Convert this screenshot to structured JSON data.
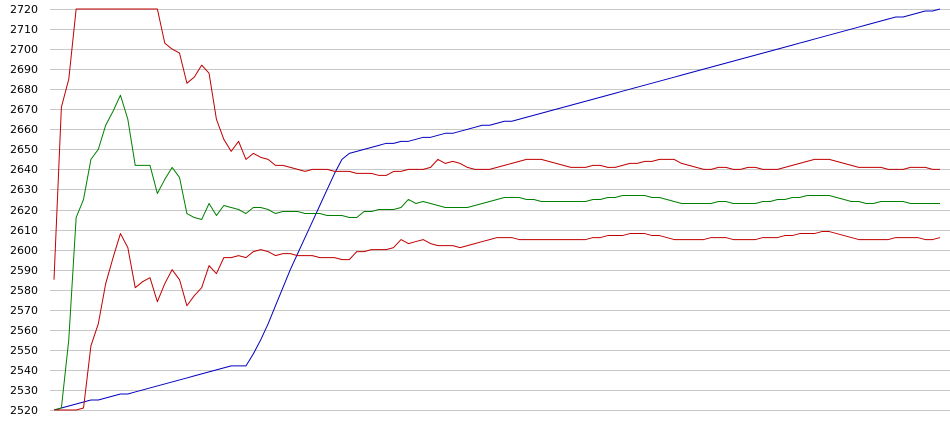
{
  "chart_data": {
    "type": "line",
    "title": "",
    "xlabel": "",
    "ylabel": "",
    "ylim": [
      2520,
      2720
    ],
    "yticks": [
      2520,
      2530,
      2540,
      2550,
      2560,
      2570,
      2580,
      2590,
      2600,
      2610,
      2620,
      2630,
      2640,
      2650,
      2660,
      2670,
      2680,
      2690,
      2700,
      2710,
      2720
    ],
    "grid": true,
    "legend": "none",
    "x": [
      0,
      1,
      2,
      3,
      4,
      5,
      6,
      7,
      8,
      9,
      10,
      11,
      12,
      13,
      14,
      15,
      16,
      17,
      18,
      19,
      20,
      21,
      22,
      23,
      24,
      25,
      26,
      27,
      28,
      29,
      30,
      31,
      32,
      33,
      34,
      35,
      36,
      37,
      38,
      39,
      40,
      41,
      42,
      43,
      44,
      45,
      46,
      47,
      48,
      49,
      50,
      51,
      52,
      53,
      54,
      55,
      56,
      57,
      58,
      59,
      60,
      61,
      62,
      63,
      64,
      65,
      66,
      67,
      68,
      69,
      70,
      71,
      72,
      73,
      74,
      75,
      76,
      77,
      78,
      79,
      80,
      81,
      82,
      83,
      84,
      85,
      86,
      87,
      88,
      89,
      90,
      91,
      92,
      93,
      94,
      95,
      96,
      97,
      98,
      99,
      100,
      101,
      102,
      103,
      104,
      105,
      106,
      107,
      108,
      109,
      110,
      111,
      112,
      113,
      114,
      115,
      116,
      117,
      118,
      119,
      120
    ],
    "series": [
      {
        "color": "#0000c0",
        "values": [
          2520,
          2521,
          2522,
          2523,
          2524,
          2525,
          2525,
          2526,
          2527,
          2528,
          2528,
          2529,
          2530,
          2531,
          2532,
          2533,
          2534,
          2535,
          2536,
          2537,
          2538,
          2539,
          2540,
          2541,
          2542,
          2542,
          2542,
          2548,
          2555,
          2563,
          2572,
          2581,
          2590,
          2598,
          2606,
          2614,
          2622,
          2630,
          2638,
          2645,
          2648,
          2649,
          2650,
          2651,
          2652,
          2653,
          2653,
          2654,
          2654,
          2655,
          2656,
          2656,
          2657,
          2658,
          2658,
          2659,
          2660,
          2661,
          2662,
          2662,
          2663,
          2664,
          2664,
          2665,
          2666,
          2667,
          2668,
          2669,
          2670,
          2671,
          2672,
          2673,
          2674,
          2675,
          2676,
          2677,
          2678,
          2679,
          2680,
          2681,
          2682,
          2683,
          2684,
          2685,
          2686,
          2687,
          2688,
          2689,
          2690,
          2691,
          2692,
          2693,
          2694,
          2695,
          2696,
          2697,
          2698,
          2699,
          2700,
          2701,
          2702,
          2703,
          2704,
          2705,
          2706,
          2707,
          2708,
          2709,
          2710,
          2711,
          2712,
          2713,
          2714,
          2715,
          2716,
          2716,
          2717,
          2718,
          2719,
          2719,
          2720
        ]
      },
      {
        "color": "#c00000",
        "values": [
          2585,
          2671,
          2685,
          2720,
          2720,
          2720,
          2720,
          2720,
          2720,
          2720,
          2720,
          2720,
          2720,
          2720,
          2720,
          2703,
          2700,
          2698,
          2683,
          2686,
          2692,
          2688,
          2665,
          2655,
          2649,
          2654,
          2645,
          2648,
          2646,
          2645,
          2642,
          2642,
          2641,
          2640,
          2639,
          2640,
          2640,
          2640,
          2639,
          2639,
          2639,
          2638,
          2638,
          2638,
          2637,
          2637,
          2639,
          2639,
          2640,
          2640,
          2640,
          2641,
          2645,
          2643,
          2644,
          2643,
          2641,
          2640,
          2640,
          2640,
          2641,
          2642,
          2643,
          2644,
          2645,
          2645,
          2645,
          2644,
          2643,
          2642,
          2641,
          2641,
          2641,
          2642,
          2642,
          2641,
          2641,
          2642,
          2643,
          2643,
          2644,
          2644,
          2645,
          2645,
          2645,
          2643,
          2642,
          2641,
          2640,
          2640,
          2641,
          2641,
          2640,
          2640,
          2641,
          2641,
          2640,
          2640,
          2640,
          2641,
          2642,
          2643,
          2644,
          2645,
          2645,
          2645,
          2644,
          2643,
          2642,
          2641,
          2641,
          2641,
          2641,
          2640,
          2640,
          2640,
          2641,
          2641,
          2641,
          2640,
          2640
        ]
      },
      {
        "color": "#008000",
        "values": [
          2520,
          2521,
          2555,
          2616,
          2625,
          2645,
          2650,
          2662,
          2669,
          2677,
          2665,
          2642,
          2642,
          2642,
          2628,
          2635,
          2641,
          2636,
          2618,
          2616,
          2615,
          2623,
          2617,
          2622,
          2621,
          2620,
          2618,
          2621,
          2621,
          2620,
          2618,
          2619,
          2619,
          2619,
          2618,
          2618,
          2618,
          2617,
          2617,
          2617,
          2616,
          2616,
          2619,
          2619,
          2620,
          2620,
          2620,
          2621,
          2625,
          2623,
          2624,
          2623,
          2622,
          2621,
          2621,
          2621,
          2621,
          2622,
          2623,
          2624,
          2625,
          2626,
          2626,
          2626,
          2625,
          2625,
          2624,
          2624,
          2624,
          2624,
          2624,
          2624,
          2624,
          2625,
          2625,
          2626,
          2626,
          2627,
          2627,
          2627,
          2627,
          2626,
          2626,
          2625,
          2624,
          2623,
          2623,
          2623,
          2623,
          2623,
          2624,
          2624,
          2623,
          2623,
          2623,
          2623,
          2624,
          2624,
          2625,
          2625,
          2626,
          2626,
          2627,
          2627,
          2627,
          2627,
          2626,
          2625,
          2624,
          2624,
          2623,
          2623,
          2624,
          2624,
          2624,
          2624,
          2623,
          2623,
          2623,
          2623,
          2623
        ]
      },
      {
        "color": "#c00000",
        "values": [
          2520,
          2520,
          2520,
          2520,
          2521,
          2552,
          2563,
          2583,
          2596,
          2608,
          2601,
          2581,
          2584,
          2586,
          2574,
          2583,
          2590,
          2585,
          2572,
          2577,
          2581,
          2592,
          2588,
          2596,
          2596,
          2597,
          2596,
          2599,
          2600,
          2599,
          2597,
          2598,
          2598,
          2597,
          2597,
          2597,
          2596,
          2596,
          2596,
          2595,
          2595,
          2599,
          2599,
          2600,
          2600,
          2600,
          2601,
          2605,
          2603,
          2604,
          2605,
          2603,
          2602,
          2602,
          2602,
          2601,
          2602,
          2603,
          2604,
          2605,
          2606,
          2606,
          2606,
          2605,
          2605,
          2605,
          2605,
          2605,
          2605,
          2605,
          2605,
          2605,
          2605,
          2606,
          2606,
          2607,
          2607,
          2607,
          2608,
          2608,
          2608,
          2607,
          2607,
          2606,
          2605,
          2605,
          2605,
          2605,
          2605,
          2606,
          2606,
          2606,
          2605,
          2605,
          2605,
          2605,
          2606,
          2606,
          2606,
          2607,
          2607,
          2608,
          2608,
          2608,
          2609,
          2609,
          2608,
          2607,
          2606,
          2605,
          2605,
          2605,
          2605,
          2605,
          2606,
          2606,
          2606,
          2606,
          2605,
          2605,
          2606
        ]
      }
    ]
  }
}
